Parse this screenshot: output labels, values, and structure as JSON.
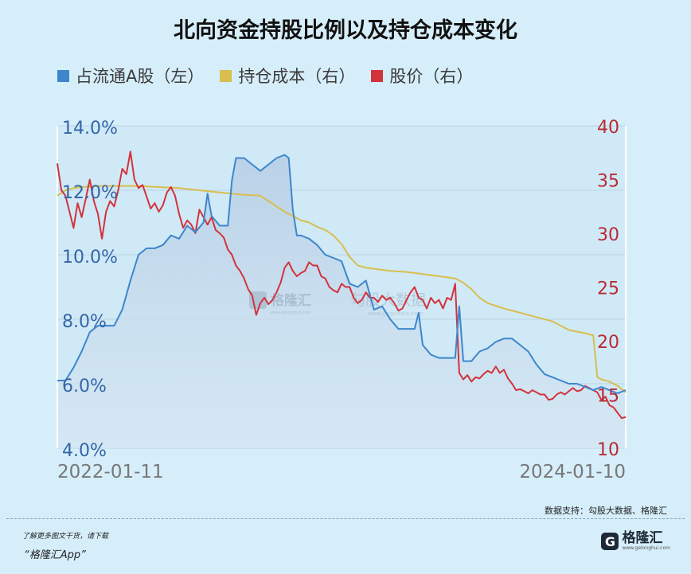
{
  "title": "北向资金持股比例以及持仓成本变化",
  "legend": [
    {
      "label": "占流通A股（左）",
      "color": "#3d86cc"
    },
    {
      "label": "持仓成本（右）",
      "color": "#d8be4e"
    },
    {
      "label": "股价（右）",
      "color": "#d2323c"
    }
  ],
  "watermark": {
    "brand": "格隆汇",
    "brand_url": "www.gelonghui.com",
    "site": "勾股大数据",
    "site_url": "www.gogudata.com"
  },
  "footer": {
    "source": "数据支持：勾股大数据、格隆汇",
    "promo_line1": "了解更多图文干货，请下载",
    "promo_line2": "“格隆汇App”",
    "brand_name": "格隆汇",
    "brand_logo": "G",
    "brand_url": "www.gelonghui.com"
  },
  "chart_data": {
    "type": "line",
    "x_labels": [
      "2022-01-11",
      "2024-01-10"
    ],
    "x_range": [
      "2022-01-11",
      "2024-01-10"
    ],
    "y_left": {
      "ticks": [
        "14.0%",
        "12.0%",
        "10.0%",
        "8.0%",
        "6.0%",
        "4.0%"
      ],
      "range": [
        4,
        14
      ]
    },
    "y_right": {
      "ticks": [
        "40",
        "35",
        "30",
        "25",
        "20",
        "15",
        "10"
      ],
      "range": [
        10,
        40
      ]
    },
    "grid": "horizontal",
    "series": [
      {
        "name": "占流通A股（左）",
        "axis": "left",
        "color": "#3d86cc",
        "points": [
          [
            0.0,
            6.1
          ],
          [
            0.02,
            6.1
          ],
          [
            0.04,
            6.5
          ],
          [
            0.06,
            7.0
          ],
          [
            0.08,
            7.6
          ],
          [
            0.1,
            7.8
          ],
          [
            0.12,
            7.8
          ],
          [
            0.14,
            7.8
          ],
          [
            0.16,
            8.3
          ],
          [
            0.18,
            9.2
          ],
          [
            0.2,
            10.0
          ],
          [
            0.22,
            10.2
          ],
          [
            0.24,
            10.2
          ],
          [
            0.26,
            10.3
          ],
          [
            0.28,
            10.6
          ],
          [
            0.3,
            10.5
          ],
          [
            0.32,
            10.9
          ],
          [
            0.34,
            10.7
          ],
          [
            0.36,
            11.0
          ],
          [
            0.37,
            11.9
          ],
          [
            0.38,
            11.2
          ],
          [
            0.4,
            10.9
          ],
          [
            0.42,
            10.9
          ],
          [
            0.43,
            12.3
          ],
          [
            0.44,
            13.0
          ],
          [
            0.46,
            13.0
          ],
          [
            0.48,
            12.8
          ],
          [
            0.5,
            12.6
          ],
          [
            0.52,
            12.8
          ],
          [
            0.54,
            13.0
          ],
          [
            0.56,
            13.1
          ],
          [
            0.57,
            13.0
          ],
          [
            0.58,
            11.4
          ],
          [
            0.59,
            10.6
          ],
          [
            0.6,
            10.6
          ],
          [
            0.62,
            10.5
          ],
          [
            0.64,
            10.3
          ],
          [
            0.66,
            10.0
          ],
          [
            0.68,
            9.9
          ],
          [
            0.7,
            9.8
          ],
          [
            0.72,
            9.1
          ],
          [
            0.74,
            9.0
          ],
          [
            0.76,
            9.2
          ],
          [
            0.78,
            8.3
          ],
          [
            0.8,
            8.4
          ],
          [
            0.82,
            8.0
          ],
          [
            0.84,
            7.7
          ],
          [
            0.86,
            7.7
          ],
          [
            0.88,
            7.7
          ],
          [
            0.89,
            8.2
          ],
          [
            0.9,
            7.2
          ],
          [
            0.92,
            6.9
          ],
          [
            0.94,
            6.8
          ],
          [
            0.96,
            6.8
          ],
          [
            0.97,
            6.8
          ],
          [
            0.98,
            6.8
          ],
          [
            0.99,
            8.4
          ],
          [
            1.0,
            6.7
          ],
          [
            1.02,
            6.7
          ],
          [
            1.04,
            7.0
          ],
          [
            1.06,
            7.1
          ],
          [
            1.08,
            7.3
          ],
          [
            1.1,
            7.4
          ],
          [
            1.12,
            7.4
          ],
          [
            1.14,
            7.2
          ],
          [
            1.16,
            7.0
          ],
          [
            1.18,
            6.6
          ],
          [
            1.2,
            6.3
          ],
          [
            1.22,
            6.2
          ],
          [
            1.24,
            6.1
          ],
          [
            1.26,
            6.0
          ],
          [
            1.28,
            6.0
          ],
          [
            1.3,
            5.9
          ],
          [
            1.32,
            5.8
          ],
          [
            1.34,
            5.9
          ],
          [
            1.36,
            5.8
          ],
          [
            1.38,
            5.7
          ],
          [
            1.4,
            5.8
          ]
        ]
      },
      {
        "name": "持仓成本（右）",
        "axis": "right",
        "color": "#d8be4e",
        "points": [
          [
            0.0,
            33.5
          ],
          [
            0.02,
            34.0
          ],
          [
            0.04,
            34.2
          ],
          [
            0.06,
            34.3
          ],
          [
            0.1,
            34.4
          ],
          [
            0.2,
            34.4
          ],
          [
            0.3,
            34.2
          ],
          [
            0.35,
            34.0
          ],
          [
            0.4,
            33.8
          ],
          [
            0.45,
            33.6
          ],
          [
            0.5,
            33.5
          ],
          [
            0.52,
            33.0
          ],
          [
            0.54,
            32.5
          ],
          [
            0.56,
            32.0
          ],
          [
            0.58,
            31.6
          ],
          [
            0.6,
            31.2
          ],
          [
            0.62,
            31.0
          ],
          [
            0.64,
            30.6
          ],
          [
            0.66,
            30.3
          ],
          [
            0.68,
            29.8
          ],
          [
            0.7,
            29.0
          ],
          [
            0.72,
            27.8
          ],
          [
            0.74,
            27.0
          ],
          [
            0.76,
            26.8
          ],
          [
            0.78,
            26.7
          ],
          [
            0.82,
            26.5
          ],
          [
            0.86,
            26.4
          ],
          [
            0.9,
            26.2
          ],
          [
            0.94,
            26.0
          ],
          [
            0.98,
            25.8
          ],
          [
            1.0,
            25.4
          ],
          [
            1.02,
            24.8
          ],
          [
            1.04,
            24.0
          ],
          [
            1.06,
            23.5
          ],
          [
            1.1,
            23.0
          ],
          [
            1.14,
            22.6
          ],
          [
            1.18,
            22.2
          ],
          [
            1.22,
            21.8
          ],
          [
            1.26,
            21.0
          ],
          [
            1.3,
            20.7
          ],
          [
            1.32,
            20.5
          ],
          [
            1.33,
            16.6
          ],
          [
            1.34,
            16.4
          ],
          [
            1.36,
            16.2
          ],
          [
            1.38,
            15.8
          ],
          [
            1.4,
            15.2
          ]
        ]
      },
      {
        "name": "股价（右）",
        "axis": "right",
        "color": "#d2323c",
        "points": [
          [
            0.0,
            36.5
          ],
          [
            0.01,
            34.0
          ],
          [
            0.02,
            33.5
          ],
          [
            0.03,
            32.0
          ],
          [
            0.04,
            30.5
          ],
          [
            0.05,
            32.8
          ],
          [
            0.06,
            31.5
          ],
          [
            0.07,
            33.2
          ],
          [
            0.08,
            35.0
          ],
          [
            0.09,
            33.0
          ],
          [
            0.1,
            31.8
          ],
          [
            0.11,
            29.5
          ],
          [
            0.12,
            32.0
          ],
          [
            0.13,
            33.0
          ],
          [
            0.14,
            32.5
          ],
          [
            0.15,
            34.0
          ],
          [
            0.16,
            36.0
          ],
          [
            0.17,
            35.5
          ],
          [
            0.18,
            37.6
          ],
          [
            0.19,
            35.0
          ],
          [
            0.2,
            34.2
          ],
          [
            0.21,
            34.5
          ],
          [
            0.22,
            33.4
          ],
          [
            0.23,
            32.3
          ],
          [
            0.24,
            32.8
          ],
          [
            0.25,
            32.0
          ],
          [
            0.26,
            32.6
          ],
          [
            0.27,
            33.8
          ],
          [
            0.28,
            34.3
          ],
          [
            0.29,
            33.5
          ],
          [
            0.3,
            31.8
          ],
          [
            0.31,
            30.5
          ],
          [
            0.32,
            31.2
          ],
          [
            0.33,
            30.8
          ],
          [
            0.34,
            30.0
          ],
          [
            0.35,
            32.2
          ],
          [
            0.36,
            31.5
          ],
          [
            0.37,
            30.8
          ],
          [
            0.38,
            31.5
          ],
          [
            0.39,
            30.3
          ],
          [
            0.4,
            30.0
          ],
          [
            0.41,
            29.6
          ],
          [
            0.42,
            28.5
          ],
          [
            0.43,
            28.0
          ],
          [
            0.44,
            27.0
          ],
          [
            0.45,
            26.5
          ],
          [
            0.46,
            25.8
          ],
          [
            0.47,
            24.8
          ],
          [
            0.48,
            24.2
          ],
          [
            0.49,
            22.4
          ],
          [
            0.5,
            23.5
          ],
          [
            0.51,
            24.0
          ],
          [
            0.52,
            23.4
          ],
          [
            0.53,
            23.8
          ],
          [
            0.54,
            24.5
          ],
          [
            0.55,
            25.4
          ],
          [
            0.56,
            26.8
          ],
          [
            0.57,
            27.3
          ],
          [
            0.58,
            26.5
          ],
          [
            0.59,
            26.0
          ],
          [
            0.6,
            26.3
          ],
          [
            0.61,
            26.5
          ],
          [
            0.62,
            27.3
          ],
          [
            0.63,
            27.0
          ],
          [
            0.64,
            27.0
          ],
          [
            0.65,
            26.0
          ],
          [
            0.66,
            25.8
          ],
          [
            0.67,
            25.0
          ],
          [
            0.68,
            24.7
          ],
          [
            0.69,
            24.5
          ],
          [
            0.7,
            25.3
          ],
          [
            0.71,
            25.0
          ],
          [
            0.72,
            25.0
          ],
          [
            0.73,
            24.0
          ],
          [
            0.74,
            23.5
          ],
          [
            0.75,
            23.8
          ],
          [
            0.76,
            24.5
          ],
          [
            0.77,
            24.0
          ],
          [
            0.78,
            24.0
          ],
          [
            0.79,
            23.6
          ],
          [
            0.8,
            24.2
          ],
          [
            0.81,
            23.8
          ],
          [
            0.82,
            24.0
          ],
          [
            0.83,
            23.5
          ],
          [
            0.84,
            22.8
          ],
          [
            0.85,
            23.0
          ],
          [
            0.86,
            23.8
          ],
          [
            0.87,
            24.5
          ],
          [
            0.88,
            25.0
          ],
          [
            0.89,
            24.0
          ],
          [
            0.9,
            23.8
          ],
          [
            0.91,
            23.0
          ],
          [
            0.92,
            24.0
          ],
          [
            0.93,
            23.5
          ],
          [
            0.94,
            23.8
          ],
          [
            0.95,
            23.0
          ],
          [
            0.96,
            24.0
          ],
          [
            0.97,
            23.8
          ],
          [
            0.98,
            25.3
          ],
          [
            0.99,
            17.0
          ],
          [
            1.0,
            16.4
          ],
          [
            1.01,
            16.8
          ],
          [
            1.02,
            16.2
          ],
          [
            1.03,
            16.6
          ],
          [
            1.04,
            16.5
          ],
          [
            1.05,
            16.9
          ],
          [
            1.06,
            17.2
          ],
          [
            1.07,
            17.0
          ],
          [
            1.08,
            17.6
          ],
          [
            1.09,
            17.0
          ],
          [
            1.1,
            17.3
          ],
          [
            1.11,
            16.5
          ],
          [
            1.12,
            16.0
          ],
          [
            1.13,
            15.4
          ],
          [
            1.14,
            15.5
          ],
          [
            1.15,
            15.3
          ],
          [
            1.16,
            15.1
          ],
          [
            1.17,
            15.4
          ],
          [
            1.18,
            15.2
          ],
          [
            1.19,
            15.0
          ],
          [
            1.2,
            15.0
          ],
          [
            1.21,
            14.5
          ],
          [
            1.22,
            14.6
          ],
          [
            1.23,
            15.0
          ],
          [
            1.24,
            15.2
          ],
          [
            1.25,
            15.0
          ],
          [
            1.26,
            15.3
          ],
          [
            1.27,
            15.6
          ],
          [
            1.28,
            15.3
          ],
          [
            1.29,
            15.4
          ],
          [
            1.3,
            15.8
          ],
          [
            1.31,
            15.6
          ],
          [
            1.32,
            15.4
          ],
          [
            1.33,
            15.2
          ],
          [
            1.34,
            14.5
          ],
          [
            1.35,
            14.8
          ],
          [
            1.36,
            14.0
          ],
          [
            1.37,
            13.8
          ],
          [
            1.38,
            13.3
          ],
          [
            1.39,
            12.8
          ],
          [
            1.4,
            12.9
          ]
        ]
      }
    ]
  }
}
